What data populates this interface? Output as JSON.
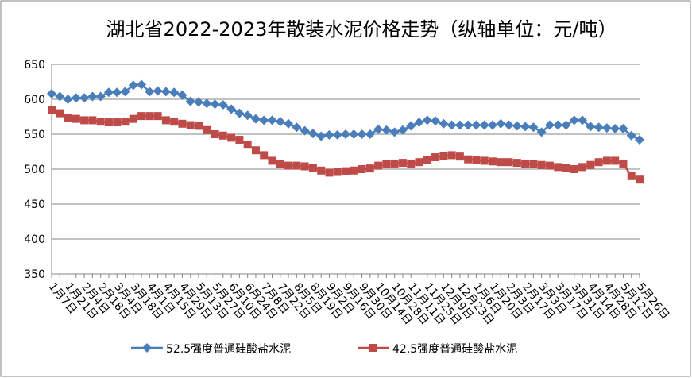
{
  "chart_data": {
    "type": "line",
    "title": "湖北省2022-2023年散装水泥价格走势（纵轴单位：元/吨）",
    "categories": [
      "1月7日",
      null,
      "1月21日",
      null,
      "2月4日",
      null,
      "2月18日",
      null,
      "3月4日",
      null,
      "3月18日",
      null,
      "4月1日",
      null,
      "4月15日",
      null,
      "4月29日",
      null,
      "5月13日",
      null,
      "5月27日",
      null,
      "6月10日",
      null,
      "6月24日",
      null,
      "7月8日",
      null,
      "7月22日",
      null,
      "8月5日",
      null,
      "8月19日",
      null,
      "9月2日",
      null,
      "9月16日",
      null,
      "9月30日",
      null,
      "10月14日",
      null,
      "10月28日",
      null,
      "11月11日",
      null,
      "11月25日",
      null,
      "12月9日",
      null,
      "12月23日",
      null,
      "1月6日",
      null,
      "1月20日",
      null,
      "2月3日",
      null,
      "2月17日",
      null,
      "3月3日",
      null,
      "3月17日",
      null,
      "3月31日",
      null,
      "4月14日",
      null,
      "4月28日",
      null,
      "5月12日",
      null,
      "5月26日"
    ],
    "series": [
      {
        "name": "52.5强度普通硅酸盐水泥",
        "color": "#4a7ebb",
        "marker": "diamond",
        "values": [
          608,
          604,
          600,
          602,
          602,
          604,
          604,
          610,
          610,
          611,
          620,
          621,
          611,
          612,
          611,
          610,
          606,
          597,
          596,
          594,
          593,
          592,
          586,
          580,
          577,
          572,
          570,
          570,
          568,
          565,
          560,
          555,
          551,
          547,
          549,
          549,
          550,
          550,
          550,
          550,
          557,
          556,
          553,
          556,
          562,
          567,
          570,
          569,
          565,
          563,
          563,
          563,
          563,
          563,
          563,
          565,
          563,
          562,
          561,
          560,
          553,
          563,
          563,
          563,
          570,
          570,
          561,
          560,
          559,
          558,
          558,
          548,
          542
        ]
      },
      {
        "name": "42.5强度普通硅酸盐水泥",
        "color": "#be4b48",
        "marker": "square",
        "values": [
          585,
          580,
          573,
          572,
          570,
          570,
          568,
          567,
          567,
          568,
          572,
          576,
          576,
          576,
          570,
          568,
          565,
          563,
          562,
          556,
          550,
          548,
          545,
          542,
          535,
          527,
          520,
          512,
          507,
          505,
          505,
          504,
          502,
          498,
          495,
          496,
          497,
          498,
          500,
          501,
          505,
          507,
          508,
          509,
          508,
          510,
          513,
          517,
          519,
          520,
          518,
          514,
          513,
          512,
          511,
          510,
          510,
          509,
          508,
          507,
          506,
          505,
          503,
          502,
          500,
          503,
          506,
          510,
          512,
          512,
          508,
          490,
          485
        ]
      }
    ],
    "ylim": [
      350,
      650
    ],
    "yticks": [
      350,
      400,
      450,
      500,
      550,
      600,
      650
    ],
    "grid": true,
    "legend": "bottom"
  }
}
